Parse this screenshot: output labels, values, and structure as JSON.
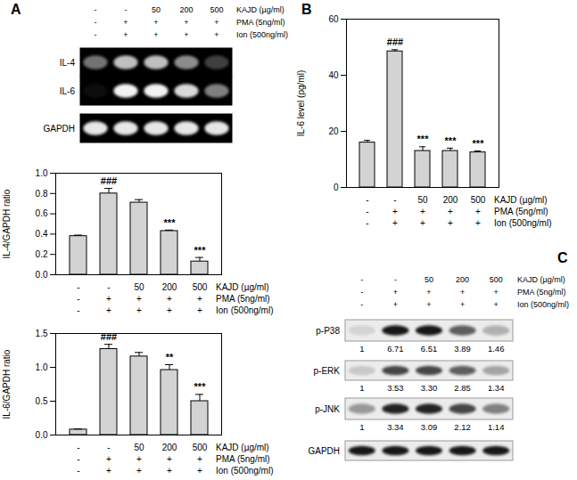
{
  "chart_data": [
    {
      "type": "blot",
      "panel": "A",
      "conditions": [
        {
          "label": "KAJD (µg/ml)",
          "values": [
            "-",
            "-",
            50,
            200,
            500
          ]
        },
        {
          "label": "PMA (5ng/ml)",
          "values": [
            "-",
            "+",
            "+",
            "+",
            "+"
          ]
        },
        {
          "label": "Ion (500ng/ml)",
          "values": [
            "-",
            "+",
            "+",
            "+",
            "+"
          ]
        }
      ],
      "rows": [
        {
          "name": "IL-4",
          "bands": [
            0.45,
            0.75,
            0.75,
            0.55,
            0.25
          ]
        },
        {
          "name": "IL-6",
          "bands": [
            0.05,
            0.95,
            0.95,
            0.85,
            0.5
          ]
        },
        {
          "name": "GAPDH",
          "bands": [
            0.9,
            0.9,
            0.9,
            0.9,
            0.9
          ]
        }
      ]
    },
    {
      "type": "bar",
      "ylabel": "IL-4/GAPDH ratio",
      "categories": [
        null,
        null,
        null,
        null,
        null
      ],
      "values": [
        0.38,
        0.8,
        0.71,
        0.43,
        0.13
      ],
      "errors": [
        0.01,
        0.05,
        0.03,
        0.01,
        0.04
      ],
      "annotations": [
        null,
        "###",
        null,
        "***",
        "***"
      ],
      "color": "#d3d3d3",
      "ylim": [
        0,
        1.0
      ],
      "yticks": [
        {
          "value": 0,
          "label": "0.0"
        },
        {
          "value": 0.2,
          "label": "0.2"
        },
        {
          "value": 0.4,
          "label": "0.4"
        },
        {
          "value": 0.6,
          "label": "0.6"
        },
        {
          "value": 0.8,
          "label": "0.8"
        },
        {
          "value": 1.0,
          "label": "1.0"
        }
      ],
      "conditions": [
        {
          "label": "KAJD (µg/ml)",
          "values": [
            "-",
            "-",
            50,
            200,
            500
          ]
        },
        {
          "label": "PMA (5ng/ml)",
          "values": [
            "-",
            "+",
            "+",
            "+",
            "+"
          ]
        },
        {
          "label": "Ion (500ng/ml)",
          "values": [
            "-",
            "+",
            "+",
            "+",
            "+"
          ]
        }
      ]
    },
    {
      "type": "bar",
      "ylabel": "IL-6/GAPDH ratio",
      "categories": [
        null,
        null,
        null,
        null,
        null
      ],
      "values": [
        0.08,
        1.27,
        1.16,
        0.96,
        0.5
      ],
      "errors": [
        0.01,
        0.07,
        0.06,
        0.08,
        0.1
      ],
      "annotations": [
        null,
        "###",
        null,
        "**",
        "***"
      ],
      "color": "#d3d3d3",
      "ylim": [
        0,
        1.5
      ],
      "yticks": [
        {
          "value": 0,
          "label": "0.0"
        },
        {
          "value": 0.5,
          "label": "0.5"
        },
        {
          "value": 1.0,
          "label": "1.0"
        },
        {
          "value": 1.5,
          "label": "1.5"
        }
      ],
      "conditions": [
        {
          "label": "KAJD (µg/ml)",
          "values": [
            "-",
            "-",
            50,
            200,
            500
          ]
        },
        {
          "label": "PMA (5ng/ml)",
          "values": [
            "-",
            "+",
            "+",
            "+",
            "+"
          ]
        },
        {
          "label": "Ion (500ng/ml)",
          "values": [
            "-",
            "+",
            "+",
            "+",
            "+"
          ]
        }
      ]
    },
    {
      "type": "bar",
      "panel": "B",
      "ylabel": "IL-6 level (pg/ml)",
      "categories": [
        null,
        null,
        null,
        null,
        null
      ],
      "values": [
        16,
        48.5,
        13,
        13,
        12.5
      ],
      "errors": [
        0.8,
        0.6,
        1.5,
        1.0,
        0.5
      ],
      "annotations": [
        null,
        "###",
        "***",
        "***",
        "***"
      ],
      "color": "#d3d3d3",
      "ylim": [
        0,
        60
      ],
      "yticks": [
        0,
        20,
        40,
        60
      ],
      "conditions": [
        {
          "label": "KAJD (µg/ml)",
          "values": [
            "-",
            "-",
            50,
            200,
            500
          ]
        },
        {
          "label": "PMA (5ng/ml)",
          "values": [
            "-",
            "+",
            "+",
            "+",
            "+"
          ]
        },
        {
          "label": "Ion (500ng/ml)",
          "values": [
            "-",
            "+",
            "+",
            "+",
            "+"
          ]
        }
      ]
    },
    {
      "type": "blot",
      "panel": "C",
      "data_labels": true,
      "conditions": [
        {
          "label": "KAJD (µg/ml)",
          "values": [
            "-",
            "-",
            50,
            200,
            500
          ]
        },
        {
          "label": "PMA (5ng/ml)",
          "values": [
            "-",
            "+",
            "+",
            "+",
            "+"
          ]
        },
        {
          "label": "Ion (500ng/ml)",
          "values": [
            "-",
            "+",
            "+",
            "+",
            "+"
          ]
        }
      ],
      "rows": [
        {
          "name": "p-P38",
          "bands": [
            0.1,
            0.9,
            0.9,
            0.6,
            0.25
          ],
          "values": [
            1,
            6.71,
            6.51,
            3.89,
            1.46
          ]
        },
        {
          "name": "p-ERK",
          "bands": [
            0.15,
            0.7,
            0.7,
            0.6,
            0.3
          ],
          "values": [
            1,
            3.53,
            3.3,
            2.85,
            1.34
          ],
          "value_labels": [
            "1",
            "3.53",
            "3.30",
            "2.85",
            "1.34"
          ]
        },
        {
          "name": "p-JNK",
          "bands": [
            0.35,
            0.85,
            0.85,
            0.7,
            0.45
          ],
          "values": [
            1,
            3.34,
            3.09,
            2.12,
            1.14
          ]
        },
        {
          "name": "GAPDH",
          "bands": [
            0.9,
            0.9,
            0.9,
            0.9,
            0.9
          ]
        }
      ]
    }
  ]
}
